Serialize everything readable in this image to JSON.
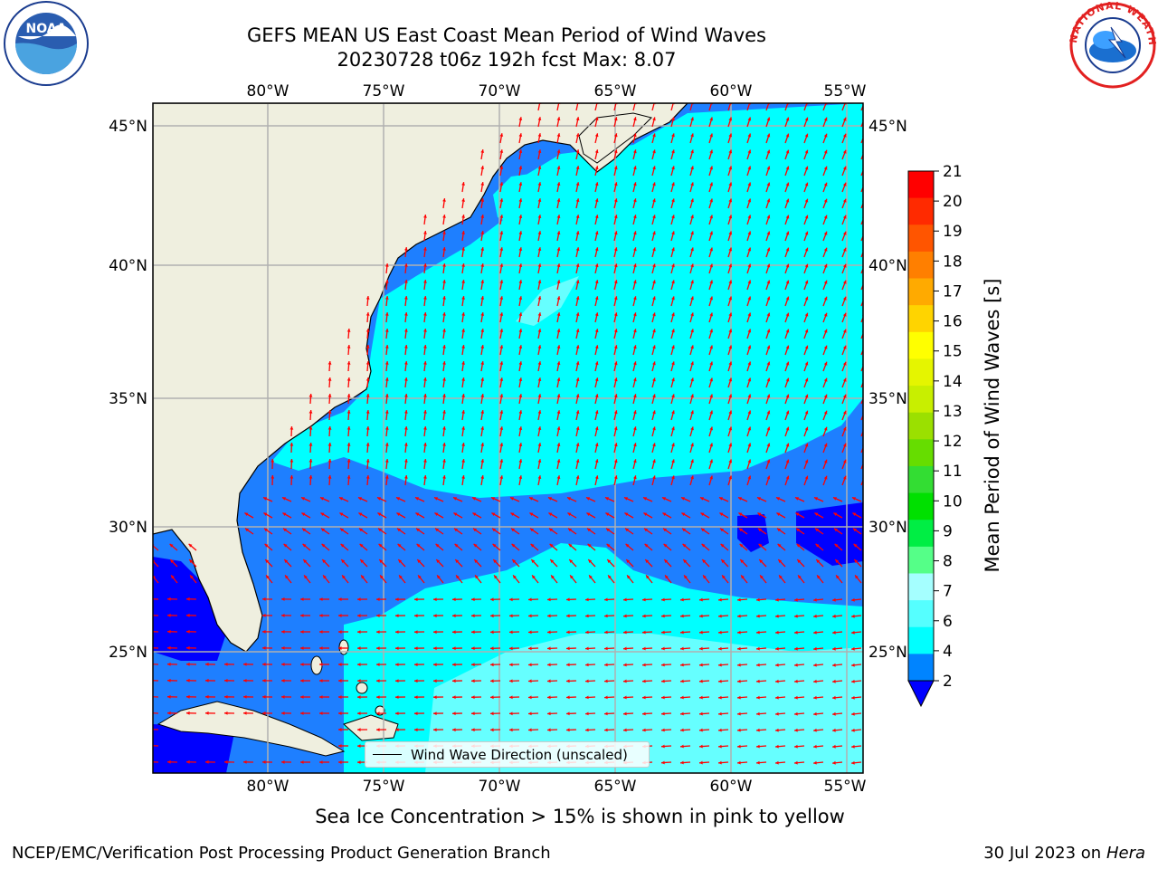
{
  "header": {
    "title_line1": "GEFS MEAN US East Coast Mean Period of Wind Waves",
    "title_line2": "20230728 t06z 192h fcst   Max: 8.07"
  },
  "axes": {
    "lon_ticks": [
      "80°W",
      "75°W",
      "70°W",
      "65°W",
      "60°W",
      "55°W"
    ],
    "lat_ticks": [
      "45°N",
      "40°N",
      "35°N",
      "30°N",
      "25°N"
    ]
  },
  "legend": {
    "label": "Wind Wave Direction (unscaled)"
  },
  "colorbar": {
    "label": "Mean Period of Wind Waves [s]",
    "ticks": [
      "21",
      "20",
      "19",
      "18",
      "17",
      "16",
      "15",
      "14",
      "13",
      "12",
      "11",
      "10",
      "9",
      "8",
      "7",
      "6",
      "4",
      "2"
    ],
    "colors": [
      "#ff0000",
      "#ff2a00",
      "#ff5500",
      "#ff7f00",
      "#ffaa00",
      "#ffd400",
      "#ffff00",
      "#e5f500",
      "#c8ef00",
      "#9be000",
      "#66dd00",
      "#33dd33",
      "#00e000",
      "#00ee44",
      "#55ff88",
      "#a5ffff",
      "#55ffff",
      "#00ffff",
      "#0084ff"
    ],
    "extend_color": "#0000ff"
  },
  "ice_note": "Sea Ice Concentration > 15% is shown in pink to yellow",
  "footer": {
    "left": "NCEP/EMC/Verification Post Processing Product Generation Branch",
    "date": "30 Jul 2023 on ",
    "host": "Hera"
  },
  "logos": {
    "noaa_text": "NOAA",
    "nws_text": "NATIONAL WEATHER SERVICE"
  },
  "colors": {
    "land": "#efefdf",
    "ocean_blue": "#1e7fff",
    "ocean_cyan": "#00ffff",
    "ocean_light": "#66ffff",
    "deep_blue": "#0000ff",
    "arrows": "#ff0000",
    "grid": "#b0b0b0"
  }
}
